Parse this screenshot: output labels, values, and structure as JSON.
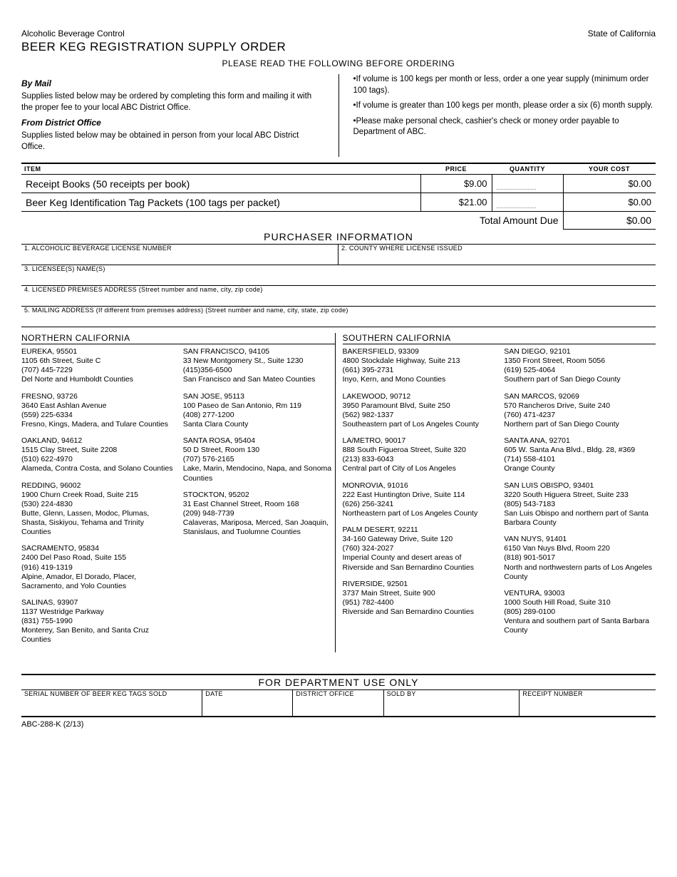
{
  "header": {
    "department": "Alcoholic Beverage Control",
    "state": "State of California",
    "title": "BEER KEG REGISTRATION SUPPLY ORDER",
    "subtitle": "PLEASE READ THE FOLLOWING BEFORE ORDERING"
  },
  "instructions": {
    "by_mail_h": "By Mail",
    "by_mail": "Supplies listed below may be ordered by completing this form and mailing it with the proper fee to your local ABC District Office.",
    "from_office_h": "From District Office",
    "from_office": "Supplies listed below may be obtained in person from your local ABC District Office.",
    "bullets": [
      "•If volume is 100 kegs per month or less, order a one year supply (minimum order 100 tags).",
      "•If volume is greater than 100 kegs per month, please order a six (6) month supply.",
      "•Please make personal check, cashier's check or money order payable to Department of ABC."
    ]
  },
  "table": {
    "headers": {
      "item": "ITEM",
      "price": "PRICE",
      "qty": "QUANTITY",
      "cost": "YOUR COST"
    },
    "rows": [
      {
        "item": "Receipt Books (50 receipts per book)",
        "price": "$9.00",
        "qty": "",
        "cost": "$0.00"
      },
      {
        "item": "Beer Keg Identification Tag Packets (100 tags per packet)",
        "price": "$21.00",
        "qty": "",
        "cost": "$0.00"
      }
    ],
    "total_label": "Total Amount Due",
    "total_value": "$0.00"
  },
  "purchaser": {
    "section": "PURCHASER INFORMATION",
    "f1": "1. ALCOHOLIC BEVERAGE LICENSE NUMBER",
    "f2": "2. COUNTY WHERE LICENSE ISSUED",
    "f3": "3. LICENSEE(S) NAME(S)",
    "f4": "4. LICENSED PREMISES ADDRESS (Street number and name, city, zip code)",
    "f5": "5. MAILING ADDRESS (If different from premises address) (Street number and name, city, state, zip code)"
  },
  "offices": {
    "north_title": "NORTHERN CALIFORNIA",
    "south_title": "SOUTHERN CALIFORNIA",
    "north_a": [
      {
        "city": "EUREKA, 95501",
        "addr": "1105 6th Street, Suite C",
        "phone": "(707) 445-7229",
        "area": "Del Norte and Humboldt Counties"
      },
      {
        "city": "FRESNO, 93726",
        "addr": "3640 East Ashlan Avenue",
        "phone": "(559) 225-6334",
        "area": "Fresno, Kings, Madera, and Tulare Counties"
      },
      {
        "city": "OAKLAND, 94612",
        "addr": "1515 Clay Street, Suite 2208",
        "phone": "(510) 622-4970",
        "area": "Alameda, Contra Costa, and Solano Counties"
      },
      {
        "city": "REDDING, 96002",
        "addr": "1900 Churn Creek Road, Suite 215",
        "phone": "(530) 224-4830",
        "area": "Butte, Glenn, Lassen, Modoc, Plumas, Shasta, Siskiyou, Tehama and Trinity Counties"
      },
      {
        "city": "SACRAMENTO, 95834",
        "addr": "2400 Del Paso Road, Suite 155",
        "phone": "(916) 419-1319",
        "area": "Alpine, Amador, El Dorado, Placer, Sacramento, and Yolo Counties"
      },
      {
        "city": "SALINAS, 93907",
        "addr": "1137 Westridge Parkway",
        "phone": "(831) 755-1990",
        "area": "Monterey, San Benito, and Santa Cruz Counties"
      }
    ],
    "north_b": [
      {
        "city": "SAN FRANCISCO, 94105",
        "addr": "33 New Montgomery St., Suite 1230",
        "phone": "(415)356-6500",
        "area": "San Francisco and San Mateo Counties"
      },
      {
        "city": "SAN JOSE, 95113",
        "addr": "100 Paseo de San Antonio, Rm 119",
        "phone": "(408) 277-1200",
        "area": "Santa Clara County"
      },
      {
        "city": "SANTA ROSA, 95404",
        "addr": "50 D Street, Room 130",
        "phone": "(707) 576-2165",
        "area": "Lake, Marin, Mendocino, Napa, and Sonoma Counties"
      },
      {
        "city": "STOCKTON, 95202",
        "addr": "31 East Channel Street, Room 168",
        "phone": "(209) 948-7739",
        "area": "Calaveras, Mariposa, Merced, San Joaquin, Stanislaus, and Tuolumne Counties"
      }
    ],
    "south_a": [
      {
        "city": "BAKERSFIELD, 93309",
        "addr": "4800 Stockdale Highway, Suite 213",
        "phone": "(661) 395-2731",
        "area": "Inyo, Kern, and Mono Counties"
      },
      {
        "city": "LAKEWOOD, 90712",
        "addr": "3950 Paramount Blvd, Suite 250",
        "phone": "(562) 982-1337",
        "area": "Southeastern part of Los Angeles County"
      },
      {
        "city": "LA/METRO, 90017",
        "addr": "888 South Figueroa Street, Suite 320",
        "phone": "(213) 833-6043",
        "area": "Central part of City of Los Angeles"
      },
      {
        "city": "MONROVIA, 91016",
        "addr": "222 East Huntington Drive, Suite 114",
        "phone": "(626) 256-3241",
        "area": "Northeastern part of Los Angeles County"
      },
      {
        "city": "PALM DESERT, 92211",
        "addr": "34-160 Gateway Drive, Suite 120",
        "phone": "(760) 324-2027",
        "area": "Imperial County and desert areas of Riverside and San Bernardino Counties"
      },
      {
        "city": "RIVERSIDE, 92501",
        "addr": "3737 Main Street, Suite 900",
        "phone": "(951) 782-4400",
        "area": "Riverside and San Bernardino Counties"
      }
    ],
    "south_b": [
      {
        "city": "SAN DIEGO, 92101",
        "addr": "1350 Front Street, Room 5056",
        "phone": "(619) 525-4064",
        "area": "Southern part of San Diego County"
      },
      {
        "city": "SAN MARCOS, 92069",
        "addr": "570 Rancheros Drive, Suite 240",
        "phone": "(760) 471-4237",
        "area": "Northern part of San Diego County"
      },
      {
        "city": "SANTA ANA, 92701",
        "addr": "605 W. Santa Ana Blvd., Bldg. 28, #369",
        "phone": "(714) 558-4101",
        "area": "Orange County"
      },
      {
        "city": "SAN LUIS OBISPO, 93401",
        "addr": "3220 South Higuera Street, Suite 233",
        "phone": "(805) 543-7183",
        "area": "San Luis Obispo and northern part of Santa Barbara County"
      },
      {
        "city": "VAN NUYS, 91401",
        "addr": "6150 Van Nuys Blvd, Room 220",
        "phone": "(818) 901-5017",
        "area": "North and northwestern parts of Los Angeles County"
      },
      {
        "city": "VENTURA, 93003",
        "addr": "1000 South Hill Road, Suite 310",
        "phone": "(805) 289-0100",
        "area": "Ventura and southern part of Santa Barbara County"
      }
    ]
  },
  "dept_use": {
    "title": "FOR DEPARTMENT USE ONLY",
    "c1": "SERIAL NUMBER OF BEER KEG TAGS SOLD",
    "c2": "DATE",
    "c3": "DISTRICT OFFICE",
    "c4": "SOLD BY",
    "c5": "RECEIPT NUMBER"
  },
  "form_code": "ABC-288-K (2/13)"
}
